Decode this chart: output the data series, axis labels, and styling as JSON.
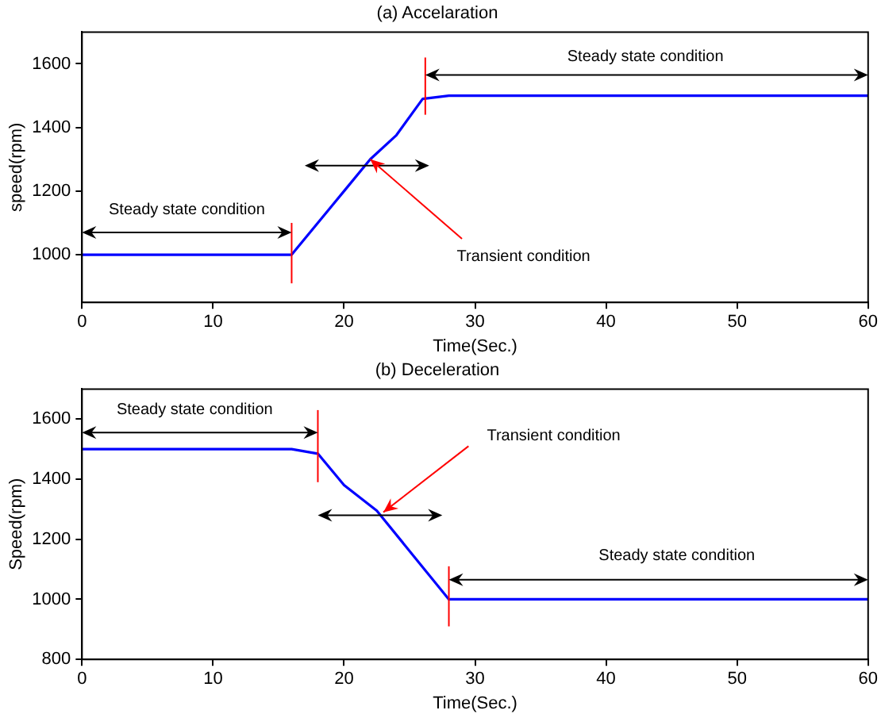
{
  "chart_data": [
    {
      "type": "line",
      "title": "(a) Accelaration",
      "xlabel": "Time(Sec.)",
      "ylabel": "speed(rpm)",
      "x": [
        0,
        16,
        20,
        22,
        24,
        26,
        28,
        60
      ],
      "series": [
        {
          "color": "#0000ff",
          "values": [
            1000,
            1000,
            1200,
            1300,
            1376,
            1490,
            1500,
            1500
          ]
        }
      ],
      "xlim": [
        0,
        60
      ],
      "xticks": [
        0,
        10,
        20,
        30,
        40,
        50,
        60
      ],
      "ylim": [
        850,
        1700
      ],
      "yticks": [
        1000,
        1200,
        1400,
        1600
      ],
      "grid": false,
      "legend": false,
      "marker": "none",
      "line_style": "solid",
      "ref_lines": [
        {
          "axis": "x",
          "value": 16,
          "color": "#ff0000"
        },
        {
          "axis": "x",
          "value": 26.2,
          "color": "#ff0000"
        }
      ],
      "annotations": [
        "Steady state condition",
        "Steady state condition",
        {
          "text": "Transient condition",
          "x": 22,
          "y": 1300
        }
      ]
    },
    {
      "type": "line",
      "title": "(b) Deceleration",
      "xlabel": "Time(Sec.)",
      "ylabel": "Speed(rpm)",
      "x": [
        0,
        16,
        18,
        20,
        22.5,
        28,
        60
      ],
      "series": [
        {
          "color": "#0000ff",
          "values": [
            1500,
            1500,
            1485,
            1380,
            1295,
            1000,
            1000
          ]
        }
      ],
      "xlim": [
        0,
        60
      ],
      "xticks": [
        0,
        10,
        20,
        30,
        40,
        50,
        60
      ],
      "ylim": [
        800,
        1700
      ],
      "yticks": [
        800,
        1000,
        1200,
        1400,
        1600
      ],
      "grid": false,
      "legend": false,
      "marker": "none",
      "line_style": "solid",
      "ref_lines": [
        {
          "axis": "x",
          "value": 18,
          "color": "#ff0000"
        },
        {
          "axis": "x",
          "value": 28,
          "color": "#ff0000"
        }
      ],
      "annotations": [
        "Steady state condition",
        {
          "text": "Transient condition",
          "x": 23,
          "y": 1290
        },
        "Steady state condition"
      ]
    }
  ]
}
